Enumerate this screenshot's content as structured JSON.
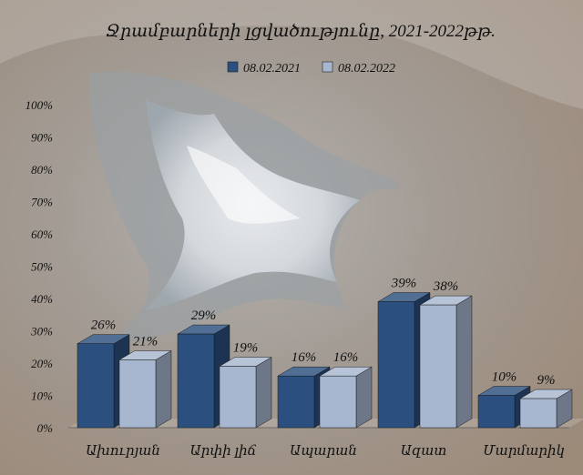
{
  "chart_data": {
    "type": "bar",
    "title": "Ջրամբարների լցվածությունը,  2021-2022թթ.",
    "xlabel": "",
    "ylabel": "",
    "ylim": [
      0,
      100
    ],
    "y_tick_labels": [
      "0%",
      "10%",
      "20%",
      "30%",
      "40%",
      "50%",
      "60%",
      "70%",
      "80%",
      "90%",
      "100%"
    ],
    "categories": [
      "Ախուրյան",
      "Արփի լիճ",
      "Ապարան",
      "Ազատ",
      "Մարմարիկ"
    ],
    "series": [
      {
        "name": "08.02.2021",
        "values": [
          26,
          29,
          16,
          39,
          10
        ],
        "labels": [
          "26%",
          "29%",
          "16%",
          "39%",
          "10%"
        ]
      },
      {
        "name": "08.02.2022",
        "values": [
          21,
          19,
          16,
          38,
          9
        ],
        "labels": [
          "21%",
          "19%",
          "16%",
          "38%",
          "9%"
        ]
      }
    ],
    "grid": false,
    "legend_position": "top-center",
    "colors": {
      "series_2021": "#2b4f7e",
      "series_2022": "#a7b7cf",
      "text": "#111111"
    }
  }
}
